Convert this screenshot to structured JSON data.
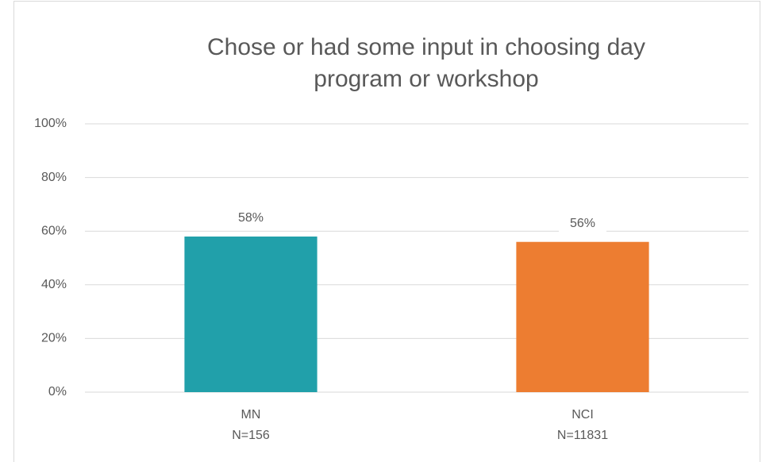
{
  "chart_data": {
    "type": "bar",
    "title": "Chose or had some input in choosing day program or workshop",
    "categories": [
      "MN",
      "NCI"
    ],
    "category_notes": [
      "N=156",
      "N=11831"
    ],
    "values": [
      58,
      56
    ],
    "value_labels": [
      "58%",
      "56%"
    ],
    "colors": [
      "#21a0aa",
      "#ed7d31"
    ],
    "ylim": [
      0,
      100
    ],
    "yticks": [
      {
        "value": 0,
        "label": "0%"
      },
      {
        "value": 20,
        "label": "20%"
      },
      {
        "value": 40,
        "label": "40%"
      },
      {
        "value": 60,
        "label": "60%"
      },
      {
        "value": 80,
        "label": "80%"
      },
      {
        "value": 100,
        "label": "100%"
      }
    ],
    "grid": true
  }
}
